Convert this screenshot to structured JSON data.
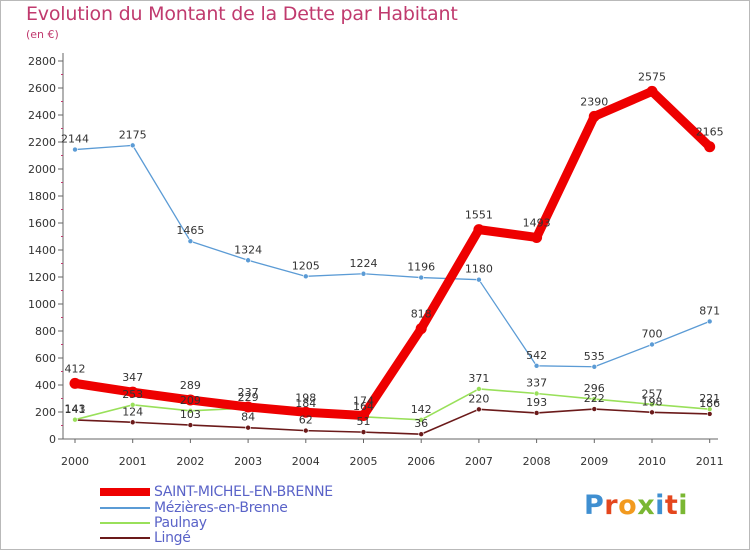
{
  "header": {
    "title": "Evolution du Montant de la Dette par Habitant",
    "subtitle": "(en €)"
  },
  "colors": {
    "title": "#c03a6e",
    "legend_text": "#5a63c8",
    "axis": "#666666"
  },
  "logo": {
    "text": "Proxiti",
    "letters": [
      {
        "ch": "P",
        "color": "#3f8fd1"
      },
      {
        "ch": "r",
        "color": "#e4461d"
      },
      {
        "ch": "o",
        "color": "#f29a1f"
      },
      {
        "ch": "x",
        "color": "#7ab733"
      },
      {
        "ch": "i",
        "color": "#3f8fd1"
      },
      {
        "ch": "t",
        "color": "#e4461d"
      },
      {
        "ch": "i",
        "color": "#7ab733"
      }
    ]
  },
  "chart_data": {
    "type": "line",
    "title": "Evolution du Montant de la Dette par Habitant",
    "subtitle": "(en €)",
    "x": [
      "2000",
      "2001",
      "2002",
      "2003",
      "2004",
      "2005",
      "2006",
      "2007",
      "2008",
      "2009",
      "2010",
      "2011"
    ],
    "ylim": [
      0,
      2800
    ],
    "yticks": [
      0,
      200,
      400,
      600,
      800,
      1000,
      1200,
      1400,
      1600,
      1800,
      2000,
      2200,
      2400,
      2600,
      2800
    ],
    "grid": false,
    "legend_position": "bottom-left",
    "series": [
      {
        "name": "SAINT-MICHEL-EN-BRENNE",
        "color": "#ee0000",
        "width": 9,
        "marker": 11,
        "values": [
          412,
          347,
          289,
          237,
          198,
          174,
          818,
          1551,
          1493,
          2390,
          2575,
          2165
        ],
        "labels": [
          "412",
          "347",
          "289",
          "237",
          "198",
          "174",
          "818",
          "1551",
          "1493",
          "2390",
          "2575",
          "2165"
        ]
      },
      {
        "name": "Mézières-en-Brenne",
        "color": "#5b9bd5",
        "width": 1.3,
        "marker": 5,
        "values": [
          2144,
          2175,
          1465,
          1324,
          1205,
          1224,
          1196,
          1180,
          542,
          535,
          700,
          871
        ],
        "labels": [
          "2144",
          "2175",
          "1465",
          "1324",
          "1205",
          "1224",
          "1196",
          "1180",
          "542",
          "535",
          "700",
          "871"
        ]
      },
      {
        "name": "Paulnay",
        "color": "#99e05a",
        "width": 1.6,
        "marker": 5,
        "values": [
          143,
          253,
          209,
          229,
          184,
          164,
          142,
          371,
          337,
          296,
          257,
          221
        ],
        "labels": [
          "143",
          "253",
          "209",
          "229",
          "184",
          "164",
          "142",
          "371",
          "337",
          "296",
          "257",
          "221"
        ]
      },
      {
        "name": "Lingé",
        "color": "#6b1a1a",
        "width": 1.6,
        "marker": 5,
        "values": [
          141,
          124,
          103,
          84,
          62,
          51,
          36,
          220,
          193,
          222,
          198,
          186
        ],
        "labels": [
          "141",
          "124",
          "103",
          "84",
          "62",
          "51",
          "36",
          "220",
          "193",
          "222",
          "198",
          "186"
        ]
      }
    ]
  }
}
